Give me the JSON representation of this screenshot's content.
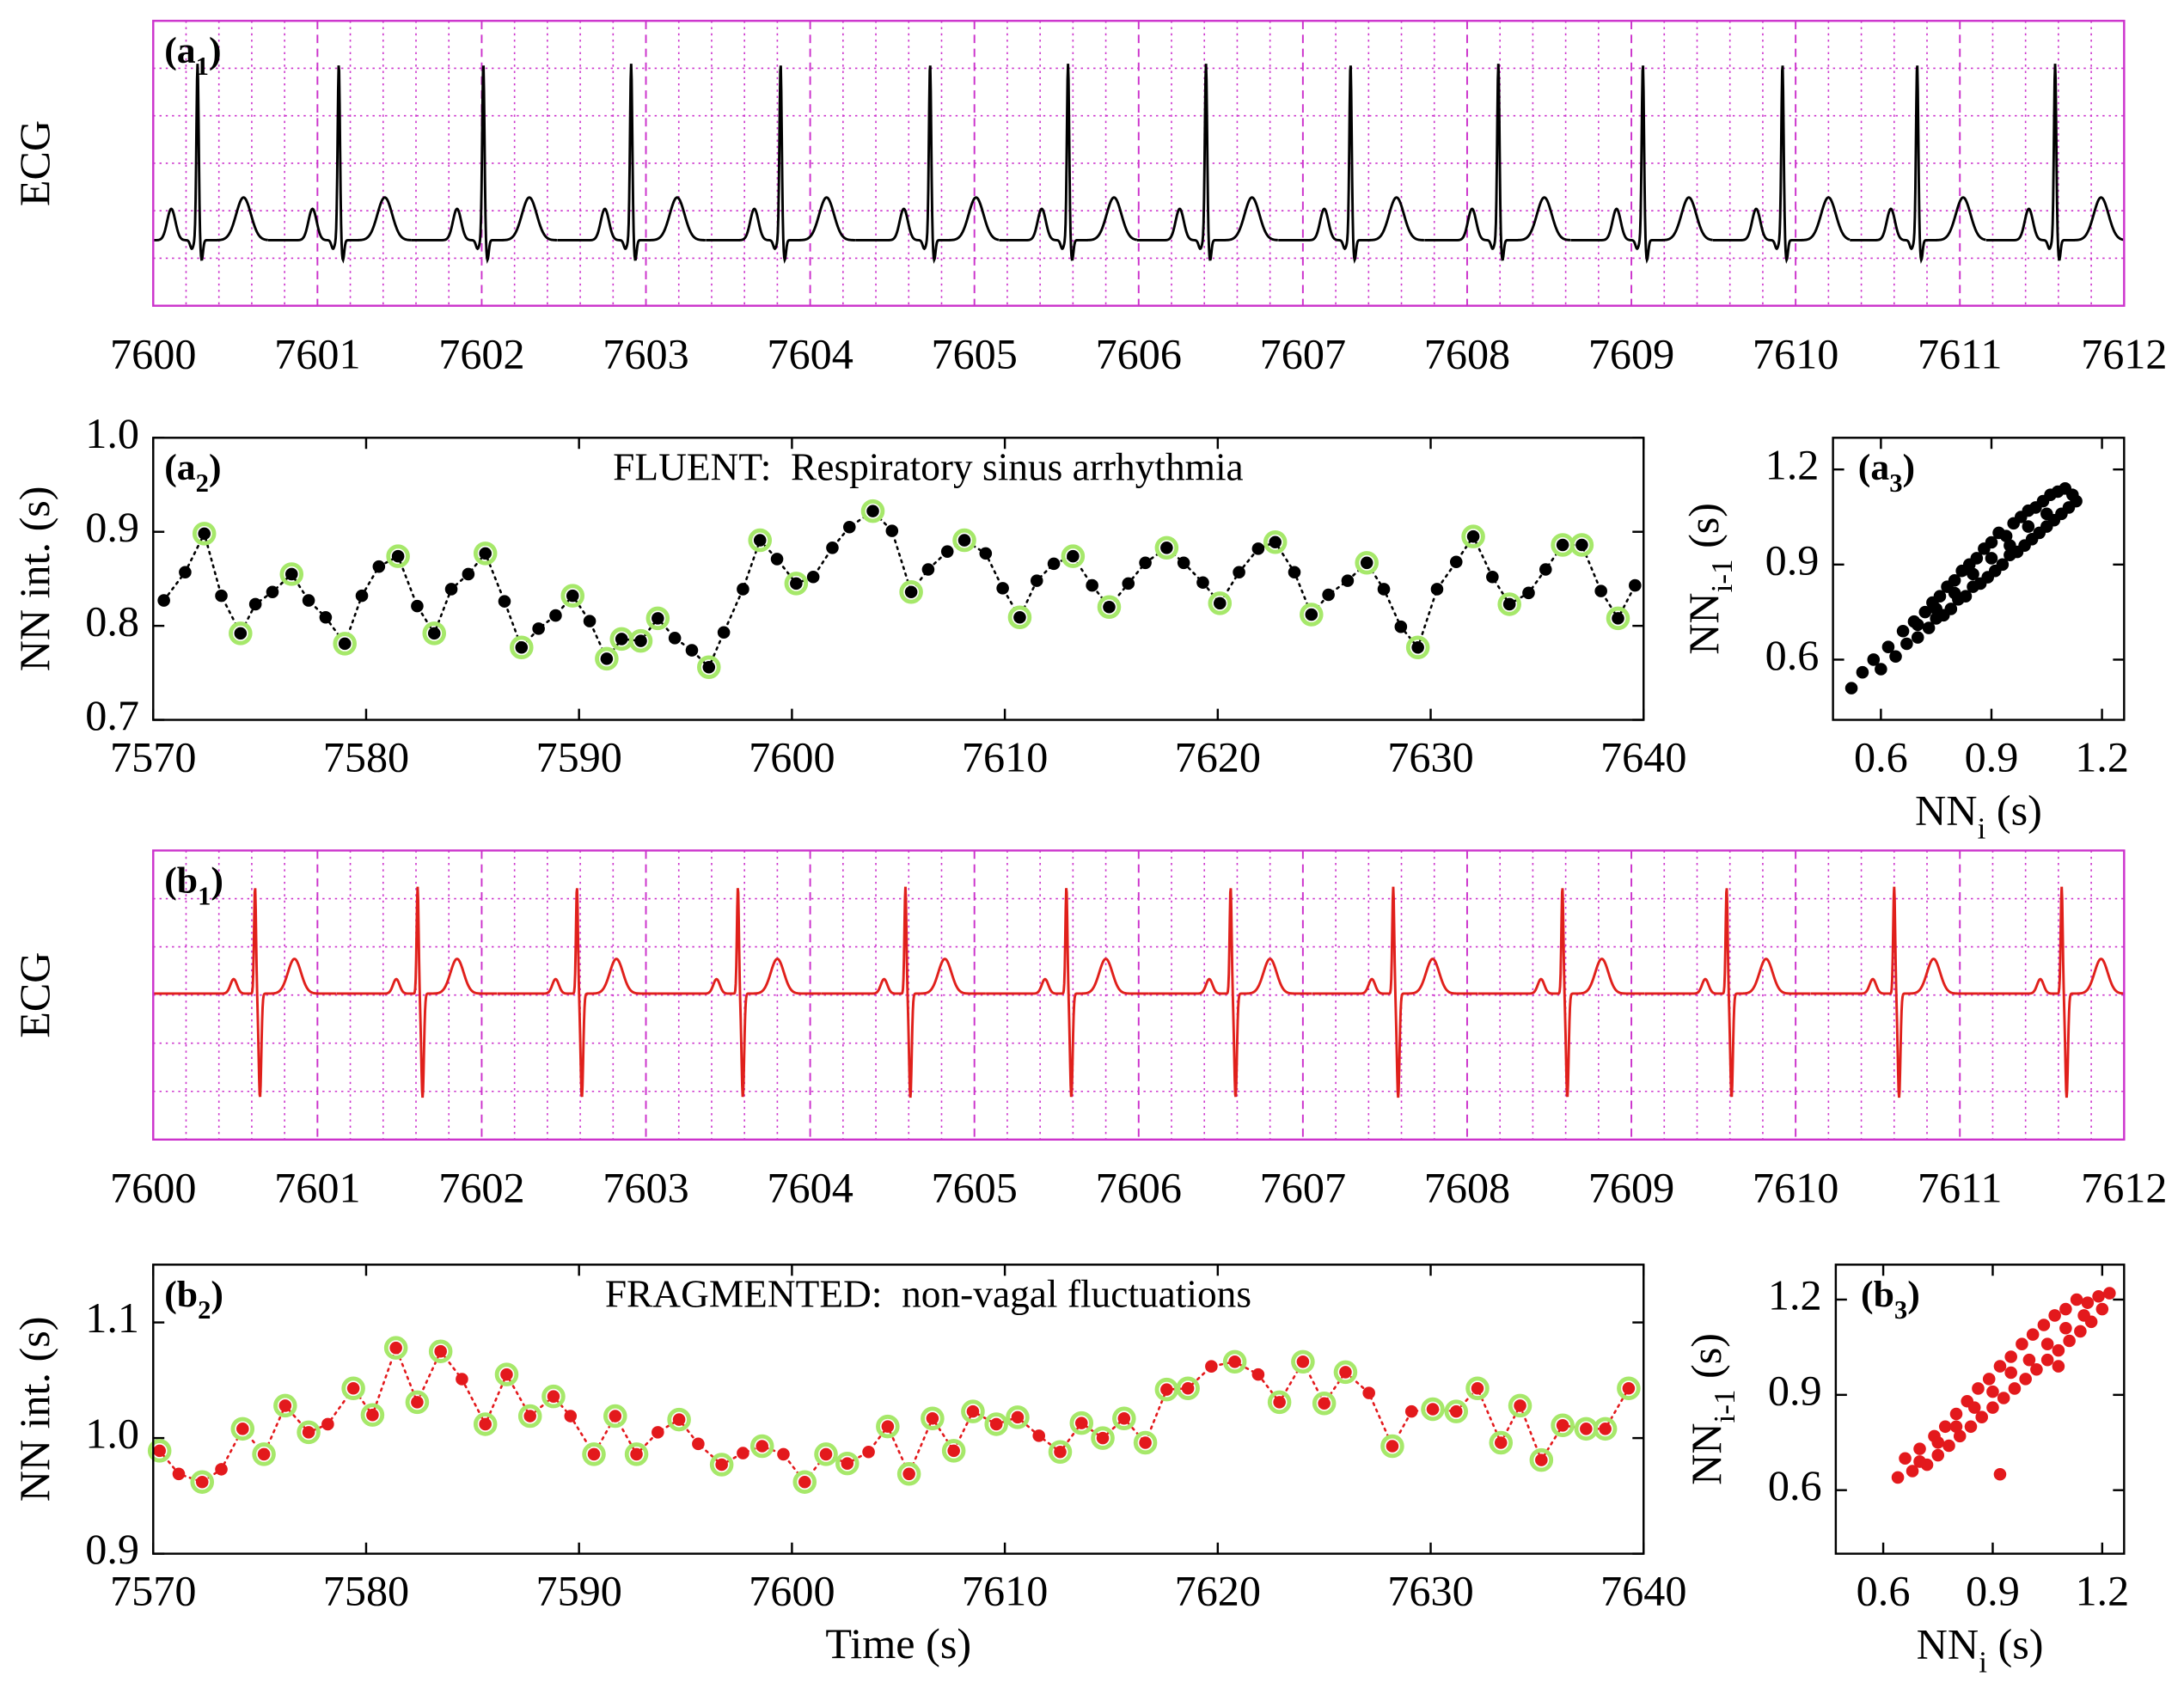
{
  "chart_data": [
    {
      "type": "ecg",
      "panel_label": {
        "main": "(a",
        "sub": "1",
        "end": ")"
      },
      "y_label": "ECG",
      "xlim": [
        7600,
        7612
      ],
      "xticks": [
        7600,
        7601,
        7602,
        7603,
        7604,
        7605,
        7606,
        7607,
        7608,
        7609,
        7610,
        7611,
        7612
      ],
      "beats": [
        7600.27,
        7601.13,
        7602.01,
        7602.91,
        7603.82,
        7604.73,
        7605.57,
        7606.41,
        7607.29,
        7608.19,
        7609.07,
        7609.92,
        7610.74,
        7611.58
      ],
      "color": "#000000",
      "waveform": "upright",
      "frame_color": "#cc33cc",
      "grid": {
        "major": "dashed",
        "minor_per_major": 5,
        "rows": 6
      }
    },
    {
      "type": "line",
      "panel_label": {
        "main": "(a",
        "sub": "2",
        "end": ")"
      },
      "title": "FLUENT:  Respiratory sinus arrhythmia",
      "y_label": "NN int. (s)",
      "xlim": [
        7570,
        7640
      ],
      "xticks": [
        7570,
        7580,
        7590,
        7600,
        7610,
        7620,
        7630,
        7640
      ],
      "ylim": [
        0.7,
        1.0
      ],
      "yticks": [
        0.7,
        0.8,
        0.9,
        {
          "value": 1.0,
          "label": "1.0"
        }
      ],
      "x": [
        7570.5,
        7571.5,
        7572.4,
        7573.2,
        7574.1,
        7574.8,
        7575.6,
        7576.5,
        7577.3,
        7578.1,
        7579.0,
        7579.8,
        7580.6,
        7581.5,
        7582.4,
        7583.2,
        7584.0,
        7584.8,
        7585.6,
        7586.5,
        7587.3,
        7588.1,
        7588.9,
        7589.7,
        7590.5,
        7591.3,
        7592.0,
        7592.9,
        7593.7,
        7594.5,
        7595.3,
        7596.1,
        7596.8,
        7597.7,
        7598.5,
        7599.3,
        7600.2,
        7601.0,
        7601.9,
        7602.7,
        7603.8,
        7604.7,
        7605.6,
        7606.4,
        7607.3,
        7608.1,
        7609.1,
        7609.9,
        7610.7,
        7611.5,
        7612.3,
        7613.2,
        7614.1,
        7614.9,
        7615.8,
        7616.6,
        7617.6,
        7618.4,
        7619.3,
        7620.1,
        7621.0,
        7621.9,
        7622.7,
        7623.6,
        7624.4,
        7625.2,
        7626.1,
        7627.0,
        7627.8,
        7628.6,
        7629.4,
        7630.3,
        7631.2,
        7632.0,
        7632.9,
        7633.7,
        7634.6,
        7635.4,
        7636.2,
        7637.1,
        7638.0,
        7638.8,
        7639.6
      ],
      "values": [
        0.827,
        0.857,
        0.898,
        0.832,
        0.792,
        0.823,
        0.836,
        0.855,
        0.827,
        0.809,
        0.781,
        0.832,
        0.863,
        0.874,
        0.821,
        0.792,
        0.839,
        0.855,
        0.877,
        0.826,
        0.777,
        0.797,
        0.811,
        0.832,
        0.805,
        0.765,
        0.786,
        0.784,
        0.808,
        0.787,
        0.774,
        0.756,
        0.793,
        0.839,
        0.891,
        0.871,
        0.845,
        0.852,
        0.883,
        0.905,
        0.922,
        0.901,
        0.836,
        0.86,
        0.879,
        0.891,
        0.877,
        0.84,
        0.809,
        0.848,
        0.866,
        0.874,
        0.843,
        0.82,
        0.845,
        0.867,
        0.883,
        0.867,
        0.846,
        0.824,
        0.857,
        0.882,
        0.889,
        0.857,
        0.812,
        0.833,
        0.848,
        0.867,
        0.839,
        0.799,
        0.777,
        0.839,
        0.868,
        0.895,
        0.852,
        0.823,
        0.835,
        0.86,
        0.886,
        0.886,
        0.837,
        0.808,
        0.843
      ],
      "ringed": [
        false,
        false,
        true,
        false,
        true,
        false,
        false,
        true,
        false,
        false,
        true,
        false,
        false,
        true,
        false,
        true,
        false,
        false,
        true,
        false,
        true,
        false,
        false,
        true,
        false,
        true,
        true,
        true,
        true,
        false,
        false,
        true,
        false,
        false,
        true,
        false,
        true,
        false,
        false,
        false,
        true,
        false,
        true,
        false,
        false,
        true,
        false,
        false,
        true,
        false,
        false,
        true,
        false,
        true,
        false,
        false,
        true,
        false,
        false,
        true,
        false,
        false,
        true,
        false,
        true,
        false,
        false,
        true,
        false,
        false,
        true,
        false,
        false,
        true,
        false,
        true,
        false,
        false,
        true,
        true,
        false,
        true,
        false
      ],
      "color": "#000000",
      "ring_color": "#a6e86a"
    },
    {
      "type": "scatter",
      "panel_label": {
        "main": "(a",
        "sub": "3",
        "end": ")"
      },
      "x_label": {
        "main": "NN",
        "sub": "i",
        "end": " (s)"
      },
      "y_label": {
        "main": "NN",
        "sub": "i-1",
        "end": " (s)"
      },
      "xlim": [
        0.47,
        1.26
      ],
      "ylim": [
        0.41,
        1.3
      ],
      "xticks": [
        0.6,
        0.9,
        1.2
      ],
      "yticks": [
        0.6,
        0.9,
        1.2
      ],
      "x": [
        0.52,
        0.55,
        0.58,
        0.6,
        0.62,
        0.64,
        0.66,
        0.67,
        0.69,
        0.7,
        0.72,
        0.73,
        0.74,
        0.75,
        0.76,
        0.77,
        0.78,
        0.79,
        0.8,
        0.81,
        0.82,
        0.83,
        0.84,
        0.85,
        0.86,
        0.87,
        0.88,
        0.89,
        0.9,
        0.91,
        0.92,
        0.93,
        0.94,
        0.95,
        0.96,
        0.97,
        0.98,
        0.99,
        1.0,
        1.01,
        1.02,
        1.03,
        1.04,
        1.05,
        1.06,
        1.07,
        1.08,
        1.09,
        1.1,
        1.11,
        1.12,
        1.13,
        0.85,
        0.9,
        0.95,
        1.0,
        0.8,
        0.75,
        0.7,
        1.05
      ],
      "values": [
        0.51,
        0.56,
        0.6,
        0.57,
        0.64,
        0.61,
        0.69,
        0.65,
        0.72,
        0.67,
        0.75,
        0.7,
        0.78,
        0.73,
        0.8,
        0.74,
        0.83,
        0.76,
        0.85,
        0.79,
        0.88,
        0.8,
        0.9,
        0.83,
        0.92,
        0.84,
        0.95,
        0.86,
        0.97,
        0.88,
        1.0,
        0.9,
        0.99,
        0.93,
        1.03,
        0.94,
        1.05,
        0.96,
        1.07,
        0.98,
        1.08,
        1.0,
        1.1,
        1.02,
        1.12,
        1.04,
        1.13,
        1.06,
        1.14,
        1.08,
        1.12,
        1.1,
        0.87,
        0.92,
        0.96,
        1.02,
        0.81,
        0.76,
        0.71,
        1.06
      ],
      "color": "#000000"
    },
    {
      "type": "ecg",
      "panel_label": {
        "main": "(b",
        "sub": "1",
        "end": ")"
      },
      "y_label": "ECG",
      "xlim": [
        7600,
        7612
      ],
      "xticks": [
        7600,
        7601,
        7602,
        7603,
        7604,
        7605,
        7606,
        7607,
        7608,
        7609,
        7610,
        7611,
        7612
      ],
      "beats": [
        7600.62,
        7601.61,
        7602.58,
        7603.56,
        7604.58,
        7605.56,
        7606.56,
        7607.55,
        7608.58,
        7609.58,
        7610.6,
        7611.62
      ],
      "color": "#e0201b",
      "waveform": "biphasic",
      "frame_color": "#cc33cc",
      "grid": {
        "major": "dashed",
        "minor_per_major": 5,
        "rows": 6
      }
    },
    {
      "type": "line",
      "panel_label": {
        "main": "(b",
        "sub": "2",
        "end": ")"
      },
      "title": "FRAGMENTED:  non-vagal fluctuations",
      "y_label": "NN int. (s)",
      "x_label": "Time (s)",
      "xlim": [
        7570,
        7640
      ],
      "xticks": [
        7570,
        7580,
        7590,
        7600,
        7610,
        7620,
        7630,
        7640
      ],
      "ylim": [
        0.9,
        1.15
      ],
      "yticks": [
        0.9,
        {
          "value": 1.0,
          "label": "1.0"
        },
        1.1
      ],
      "x": [
        7570.3,
        7571.2,
        7572.3,
        7573.2,
        7574.2,
        7575.2,
        7576.2,
        7577.3,
        7578.2,
        7579.4,
        7580.3,
        7581.4,
        7582.4,
        7583.5,
        7584.5,
        7585.6,
        7586.6,
        7587.7,
        7588.8,
        7589.6,
        7590.7,
        7591.7,
        7592.7,
        7593.7,
        7594.7,
        7595.6,
        7596.7,
        7597.7,
        7598.6,
        7599.6,
        7600.6,
        7601.6,
        7602.6,
        7603.6,
        7604.5,
        7605.5,
        7606.6,
        7607.6,
        7608.5,
        7609.6,
        7610.6,
        7611.6,
        7612.6,
        7613.6,
        7614.6,
        7615.6,
        7616.6,
        7617.6,
        7618.6,
        7619.7,
        7620.8,
        7621.9,
        7622.9,
        7624.0,
        7625.0,
        7626.0,
        7627.1,
        7628.2,
        7629.1,
        7630.1,
        7631.2,
        7632.2,
        7633.3,
        7634.2,
        7635.2,
        7636.2,
        7637.3,
        7638.2,
        7639.3
      ],
      "values": [
        0.989,
        0.969,
        0.962,
        0.973,
        1.008,
        0.986,
        1.028,
        1.005,
        1.012,
        1.043,
        1.02,
        1.078,
        1.031,
        1.075,
        1.051,
        1.012,
        1.055,
        1.019,
        1.036,
        1.019,
        0.986,
        1.019,
        0.986,
        1.005,
        1.016,
        0.995,
        0.977,
        0.987,
        0.993,
        0.986,
        0.962,
        0.986,
        0.978,
        0.988,
        1.01,
        0.969,
        1.017,
        0.989,
        1.023,
        1.012,
        1.018,
        1.002,
        0.988,
        1.013,
        1.0,
        1.017,
        0.996,
        1.042,
        1.043,
        1.062,
        1.066,
        1.055,
        1.031,
        1.066,
        1.03,
        1.057,
        1.039,
        0.993,
        1.023,
        1.025,
        1.023,
        1.043,
        0.996,
        1.028,
        0.981,
        1.011,
        1.008,
        1.008,
        1.043
      ],
      "ringed": [
        true,
        false,
        true,
        false,
        true,
        true,
        true,
        true,
        false,
        true,
        true,
        true,
        true,
        true,
        false,
        true,
        true,
        true,
        true,
        false,
        true,
        true,
        true,
        false,
        true,
        false,
        true,
        false,
        true,
        false,
        true,
        true,
        true,
        false,
        true,
        true,
        true,
        true,
        true,
        true,
        true,
        false,
        true,
        true,
        true,
        true,
        true,
        true,
        true,
        false,
        true,
        false,
        true,
        true,
        true,
        true,
        false,
        true,
        false,
        true,
        true,
        true,
        true,
        true,
        true,
        true,
        true,
        true,
        true
      ],
      "color": "#e3191c",
      "ring_color": "#a6e86a"
    },
    {
      "type": "scatter",
      "panel_label": {
        "main": "(b",
        "sub": "3",
        "end": ")"
      },
      "x_label": {
        "main": "NN",
        "sub": "i",
        "end": " (s)"
      },
      "y_label": {
        "main": "NN",
        "sub": "i-1",
        "end": " (s)"
      },
      "xlim": [
        0.47,
        1.26
      ],
      "ylim": [
        0.4,
        1.31
      ],
      "xticks": [
        0.6,
        0.9,
        1.2
      ],
      "yticks": [
        0.6,
        0.9,
        1.2
      ],
      "x": [
        0.64,
        0.66,
        0.68,
        0.7,
        0.72,
        0.74,
        0.75,
        0.77,
        0.78,
        0.8,
        0.81,
        0.83,
        0.84,
        0.86,
        0.87,
        0.89,
        0.9,
        0.92,
        0.93,
        0.95,
        0.96,
        0.98,
        0.99,
        1.01,
        1.02,
        1.04,
        1.05,
        1.07,
        1.08,
        1.1,
        1.11,
        1.13,
        1.14,
        1.16,
        1.17,
        1.19,
        1.2,
        1.22,
        0.9,
        0.95,
        1.0,
        1.05,
        1.1,
        0.85,
        0.8,
        0.75,
        0.7,
        1.15,
        0.92,
        1.08
      ],
      "values": [
        0.64,
        0.7,
        0.66,
        0.73,
        0.68,
        0.77,
        0.71,
        0.8,
        0.74,
        0.84,
        0.77,
        0.88,
        0.8,
        0.92,
        0.83,
        0.95,
        0.86,
        0.99,
        0.89,
        1.02,
        0.92,
        1.06,
        0.95,
        1.09,
        0.98,
        1.12,
        1.01,
        1.15,
        1.04,
        1.17,
        1.07,
        1.2,
        1.1,
        1.19,
        1.13,
        1.21,
        1.17,
        1.22,
        0.91,
        0.97,
        1.01,
        1.06,
        1.11,
        0.86,
        0.8,
        0.75,
        0.69,
        1.15,
        0.65,
        0.99
      ],
      "color": "#e3191c"
    }
  ]
}
